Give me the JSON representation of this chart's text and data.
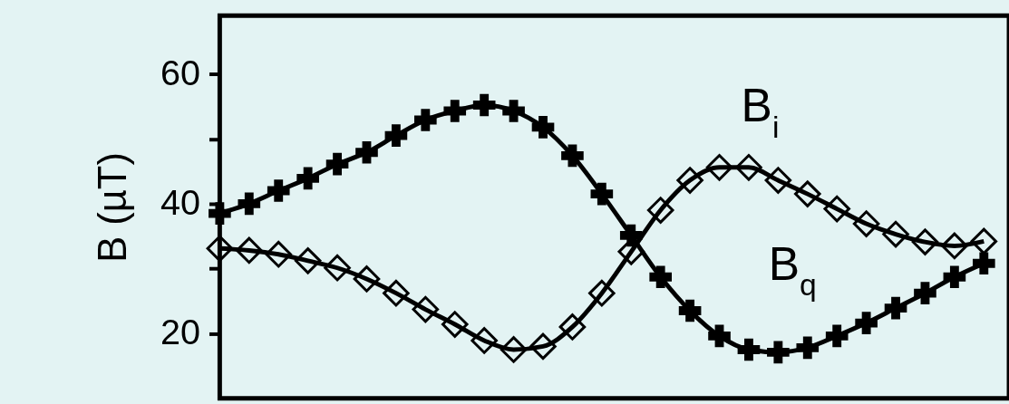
{
  "chart_data": {
    "type": "line",
    "ylabel": "B (µT)",
    "categories": [
      null,
      null,
      null,
      null,
      null,
      null,
      null,
      null,
      null,
      null,
      null,
      null,
      null,
      null,
      null,
      null,
      null,
      null,
      null,
      null,
      null,
      null,
      null,
      null,
      null,
      null,
      null
    ],
    "series": [
      {
        "name": "B$_{q}$",
        "color": "#000000",
        "marker": "cross",
        "values": [
          38.5,
          40.0,
          42.0,
          43.9,
          46.1,
          47.9,
          50.5,
          52.9,
          54.3,
          55.2,
          54.3,
          51.8,
          47.4,
          41.5,
          35.1,
          28.7,
          23.5,
          19.6,
          17.5,
          17.1,
          17.8,
          19.6,
          21.6,
          23.9,
          26.2,
          28.7,
          30.8
        ]
      },
      {
        "name": "B$_{i}$",
        "color": "#000000",
        "marker": "diamond",
        "values": [
          33.1,
          32.8,
          32.2,
          31.2,
          30.1,
          28.4,
          26.2,
          23.7,
          21.4,
          18.9,
          17.5,
          18.0,
          21.0,
          26.2,
          32.6,
          39.0,
          43.6,
          45.6,
          45.6,
          43.6,
          41.5,
          39.2,
          36.9,
          35.3,
          34.1,
          33.5,
          34.2
        ]
      }
    ],
    "ylim": [
      10,
      69
    ],
    "yticks": [
      20,
      {
        "value": 30,
        "label": null
      },
      40,
      {
        "value": 50,
        "label": null
      },
      60
    ],
    "line_style": "solid"
  }
}
